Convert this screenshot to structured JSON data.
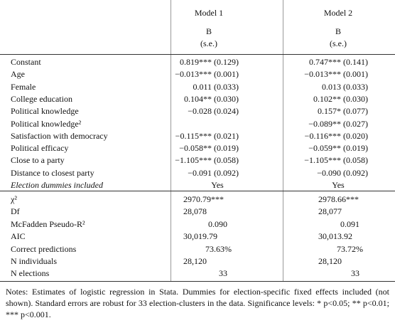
{
  "header": {
    "models": [
      "Model 1",
      "Model 2"
    ],
    "coef_label": [
      "B",
      "B"
    ],
    "se_label": [
      "(s.e.)",
      "(s.e.)"
    ]
  },
  "table": {
    "rows": [
      [
        "Constant",
        "0.819*** (0.129)",
        "0.747*** (0.141)"
      ],
      [
        "Age",
        "−0.013*** (0.001)",
        "−0.013*** (0.001)"
      ],
      [
        "Female",
        "0.011 (0.033)",
        "0.013 (0.033)"
      ],
      [
        "College education",
        "0.104** (0.030)",
        "0.102** (0.030)"
      ],
      [
        "Political knowledge",
        "−0.028 (0.024)",
        "0.157* (0.077)"
      ],
      [
        "Political knowledge²",
        "",
        "−0.089** (0.027)"
      ],
      [
        "Satisfaction with democracy",
        "−0.115*** (0.021)",
        "−0.116*** (0.020)"
      ],
      [
        "Political efficacy",
        "−0.058** (0.019)",
        "−0.059** (0.019)"
      ],
      [
        "Close to a party",
        "−1.105*** (0.058)",
        "−1.105*** (0.058)"
      ],
      [
        "Distance to closest party",
        "−0.091 (0.092)",
        "−0.090 (0.092)"
      ],
      [
        "Election dummies included",
        "Yes",
        "Yes"
      ],
      [
        "χ²",
        "2970.79***",
        "2978.66***"
      ],
      [
        "Df",
        "28,078",
        "28,077"
      ],
      [
        "McFadden Pseudo-R²",
        "0.090",
        "0.091"
      ],
      [
        "AIC",
        "30,019.79",
        "30,013.92"
      ],
      [
        "Correct predictions",
        "73.63%",
        "73.72%"
      ],
      [
        "N individuals",
        "28,120",
        "28,120"
      ],
      [
        "N elections",
        "33",
        "33"
      ]
    ]
  },
  "notes": "Notes: Estimates of logistic regression in Stata. Dummies for election-specific fixed effects included (not shown). Standard errors are robust for 33 election-clusters in the data. Significance levels: * p<0.05; ** p<0.01; *** p<0.001."
}
